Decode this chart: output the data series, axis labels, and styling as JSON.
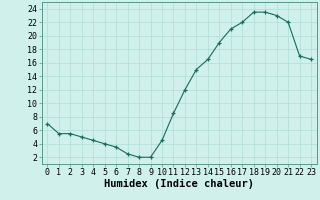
{
  "x": [
    0,
    1,
    2,
    3,
    4,
    5,
    6,
    7,
    8,
    9,
    10,
    11,
    12,
    13,
    14,
    15,
    16,
    17,
    18,
    19,
    20,
    21,
    22,
    23
  ],
  "y": [
    7,
    5.5,
    5.5,
    5,
    4.5,
    4,
    3.5,
    2.5,
    2,
    2,
    4.5,
    8.5,
    12,
    15,
    16.5,
    19,
    21,
    22,
    23.5,
    23.5,
    23,
    22,
    17,
    16.5
  ],
  "line_color": "#1a6b5a",
  "marker": "+",
  "bg_color": "#cff0eb",
  "grid_color": "#b0ddd5",
  "border_color": "#5a9a8a",
  "xlabel": "Humidex (Indice chaleur)",
  "xlim": [
    -0.5,
    23.5
  ],
  "ylim": [
    1,
    25
  ],
  "yticks": [
    2,
    4,
    6,
    8,
    10,
    12,
    14,
    16,
    18,
    20,
    22,
    24
  ],
  "xticks": [
    0,
    1,
    2,
    3,
    4,
    5,
    6,
    7,
    8,
    9,
    10,
    11,
    12,
    13,
    14,
    15,
    16,
    17,
    18,
    19,
    20,
    21,
    22,
    23
  ],
  "xlabel_fontsize": 7.5,
  "tick_fontsize": 6
}
